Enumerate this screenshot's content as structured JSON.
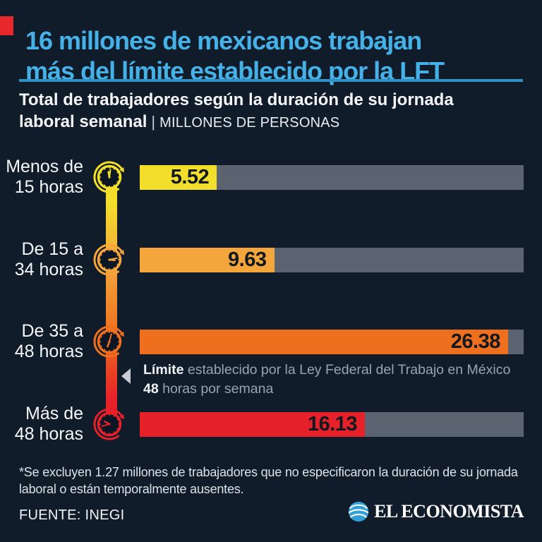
{
  "page": {
    "background": "#111c2b"
  },
  "header": {
    "accent_color": "#e8272c",
    "title_line1": "16 millones de mexicanos trabajan",
    "title_line2": "más del límite establecido por la LFT",
    "title_color": "#45b1e6",
    "rule_color": "#2e93c4"
  },
  "subtitle": {
    "line1": "Total de trabajadores según la duración de su jornada",
    "line2_bold": "laboral semanal",
    "separator": "|",
    "units_label": "MILLONES DE PERSONAS"
  },
  "chart_data": {
    "type": "bar",
    "orientation": "horizontal",
    "title": "Total de trabajadores según la duración de su jornada laboral semanal",
    "units": "MILLONES DE PERSONAS",
    "categories": [
      "Menos de 15 horas",
      "De 15 a 34 horas",
      "De 35 a 48 horas",
      "Más de 48 horas"
    ],
    "values": [
      5.52,
      9.63,
      26.38,
      16.13
    ],
    "bar_colors": [
      "#f3df2b",
      "#f4a53c",
      "#ee6f1d",
      "#e6212a"
    ],
    "track_color": "#5b6270",
    "xlim": [
      0,
      27.5
    ],
    "grid": false,
    "legend": false,
    "annotation": "Límite establecido por la Ley Federal del Trabajo en México: 48 horas por semana"
  },
  "rows": [
    {
      "label_line1": "Menos de",
      "label_line2": "15 horas",
      "value": 5.52,
      "color": "#f3df2b"
    },
    {
      "label_line1": "De 15 a",
      "label_line2": "34 horas",
      "value": 9.63,
      "color": "#f4a53c"
    },
    {
      "label_line1": "De 35 a",
      "label_line2": "48 horas",
      "value": 26.38,
      "color": "#ee6f1d"
    },
    {
      "label_line1": "Más de",
      "label_line2": "48 horas",
      "value": 16.13,
      "color": "#e6212a"
    }
  ],
  "limit_note": {
    "bold1": "Límite",
    "rest1": " establecido por la Ley Federal del Trabajo en México",
    "bold2": "48",
    "rest2": " horas por semana"
  },
  "footnote": "*Se excluyen 1.27 millones de trabajadores que no especificaron la duración de su jornada laboral o están temporalmente ausentes.",
  "source": "FUENTE: INEGI",
  "logo": {
    "name": "EL ECONOMISTA"
  }
}
